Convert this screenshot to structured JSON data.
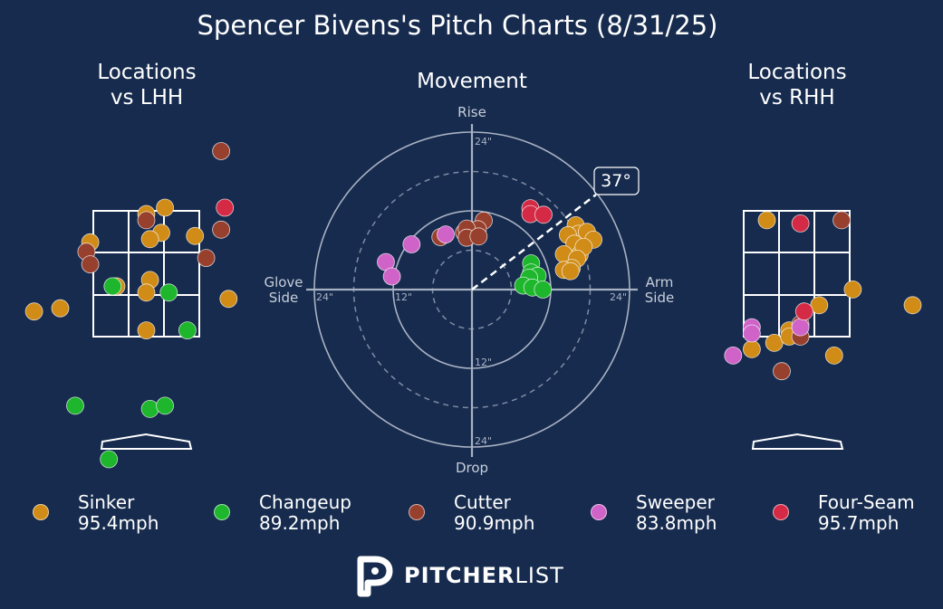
{
  "title": "Spencer Bivens's Pitch Charts (8/31/25)",
  "left_panel": {
    "title_line1": "Locations",
    "title_line2": "vs LHH"
  },
  "center_panel": {
    "title": "Movement",
    "label_top": "Rise",
    "label_bottom": "Drop",
    "label_left_1": "Glove",
    "label_left_2": "Side",
    "label_right_1": "Arm",
    "label_right_2": "Side",
    "ring_labels": [
      "12\"",
      "24\""
    ],
    "arm_angle": "37°"
  },
  "right_panel": {
    "title_line1": "Locations",
    "title_line2": "vs RHH"
  },
  "legend": [
    {
      "name": "Sinker",
      "velo": "95.4mph",
      "color": "#d08c16"
    },
    {
      "name": "Changeup",
      "velo": "89.2mph",
      "color": "#1db62c"
    },
    {
      "name": "Cutter",
      "velo": "90.9mph",
      "color": "#98402e"
    },
    {
      "name": "Sweeper",
      "velo": "83.8mph",
      "color": "#d063c8"
    },
    {
      "name": "Four-Seam",
      "velo": "95.7mph",
      "color": "#d42a45"
    }
  ],
  "logo": {
    "bold": "PITCHER",
    "light": "LIST"
  },
  "chart_data": [
    {
      "type": "scatter",
      "title": "Locations vs LHH",
      "x_unit": "ft",
      "y_unit": "ft",
      "series": [
        {
          "name": "Sinker",
          "points": [
            [
              0.25,
              3.55
            ],
            [
              0.0,
              3.45
            ],
            [
              0.2,
              3.15
            ],
            [
              0.05,
              3.05
            ],
            [
              -0.75,
              3.0
            ],
            [
              0.65,
              3.1
            ],
            [
              0.05,
              2.4
            ],
            [
              -0.4,
              2.3
            ],
            [
              0.0,
              2.2
            ],
            [
              1.1,
              2.1
            ],
            [
              -1.5,
              1.9
            ],
            [
              -1.15,
              1.95
            ],
            [
              0.0,
              1.6
            ]
          ]
        },
        {
          "name": "Changeup",
          "points": [
            [
              -0.45,
              2.3
            ],
            [
              0.3,
              2.2
            ],
            [
              0.55,
              1.6
            ],
            [
              -0.95,
              0.4
            ],
            [
              0.05,
              0.35
            ],
            [
              0.25,
              0.4
            ],
            [
              -0.5,
              -0.45
            ]
          ]
        },
        {
          "name": "Cutter",
          "points": [
            [
              1.0,
              4.45
            ],
            [
              0.0,
              3.35
            ],
            [
              1.0,
              3.2
            ],
            [
              -0.8,
              2.85
            ],
            [
              -0.75,
              2.65
            ],
            [
              0.8,
              2.75
            ]
          ]
        },
        {
          "name": "Four-Seam",
          "points": [
            [
              1.05,
              3.55
            ]
          ]
        },
        {
          "name": "Sweeper",
          "points": []
        }
      ]
    },
    {
      "type": "scatter",
      "title": "Movement",
      "x_unit": "in (arm side +)",
      "y_unit": "in (rise +)",
      "range": [
        -24,
        24
      ],
      "series": [
        {
          "name": "Sinker",
          "points": [
            [
              15.8,
              9.8
            ],
            [
              16.2,
              8.5
            ],
            [
              17.5,
              8.8
            ],
            [
              18.5,
              7.6
            ],
            [
              14.6,
              8.3
            ],
            [
              15.6,
              7.0
            ],
            [
              16.4,
              5.3
            ],
            [
              17.0,
              6.5
            ],
            [
              14.0,
              5.4
            ],
            [
              16.0,
              4.7
            ],
            [
              15.2,
              3.3
            ],
            [
              14.0,
              3.0
            ],
            [
              15.0,
              2.8
            ]
          ]
        },
        {
          "name": "Changeup",
          "points": [
            [
              9.0,
              4.0
            ],
            [
              9.0,
              2.6
            ],
            [
              10.0,
              2.1
            ],
            [
              8.7,
              1.8
            ],
            [
              7.8,
              0.6
            ],
            [
              9.2,
              0.3
            ],
            [
              10.8,
              0.0
            ]
          ]
        },
        {
          "name": "Cutter",
          "points": [
            [
              1.8,
              10.5
            ],
            [
              -1.2,
              8.7
            ],
            [
              -0.2,
              8.9
            ],
            [
              0.9,
              9.2
            ],
            [
              -0.8,
              9.3
            ],
            [
              -4.8,
              8.0
            ],
            [
              -0.8,
              7.9
            ],
            [
              1.0,
              8.1
            ]
          ]
        },
        {
          "name": "Sweeper",
          "points": [
            [
              -9.2,
              6.9
            ],
            [
              -4.0,
              8.4
            ],
            [
              -13.1,
              4.2
            ],
            [
              -12.2,
              2.0
            ]
          ]
        },
        {
          "name": "Four-Seam",
          "points": [
            [
              8.9,
              12.4
            ],
            [
              8.9,
              11.5
            ],
            [
              10.9,
              11.4
            ]
          ]
        }
      ],
      "arm_angle_deg": 37
    },
    {
      "type": "scatter",
      "title": "Locations vs RHH",
      "x_unit": "ft",
      "y_unit": "ft",
      "series": [
        {
          "name": "Sinker",
          "points": [
            [
              -0.4,
              3.35
            ],
            [
              0.75,
              2.25
            ],
            [
              0.3,
              2.0
            ],
            [
              -0.1,
              1.6
            ],
            [
              -0.3,
              1.4
            ],
            [
              -0.1,
              1.5
            ],
            [
              0.5,
              1.2
            ],
            [
              -0.6,
              1.3
            ],
            [
              1.55,
              2.0
            ]
          ]
        },
        {
          "name": "Changeup",
          "points": []
        },
        {
          "name": "Cutter",
          "points": [
            [
              0.6,
              3.35
            ],
            [
              0.05,
              1.5
            ],
            [
              0.05,
              1.7
            ],
            [
              -0.2,
              0.95
            ]
          ]
        },
        {
          "name": "Sweeper",
          "points": [
            [
              -0.6,
              1.65
            ],
            [
              -0.6,
              1.55
            ],
            [
              -0.85,
              1.2
            ],
            [
              0.05,
              1.65
            ]
          ]
        },
        {
          "name": "Four-Seam",
          "points": [
            [
              0.05,
              3.3
            ],
            [
              0.1,
              1.9
            ]
          ]
        }
      ]
    }
  ]
}
